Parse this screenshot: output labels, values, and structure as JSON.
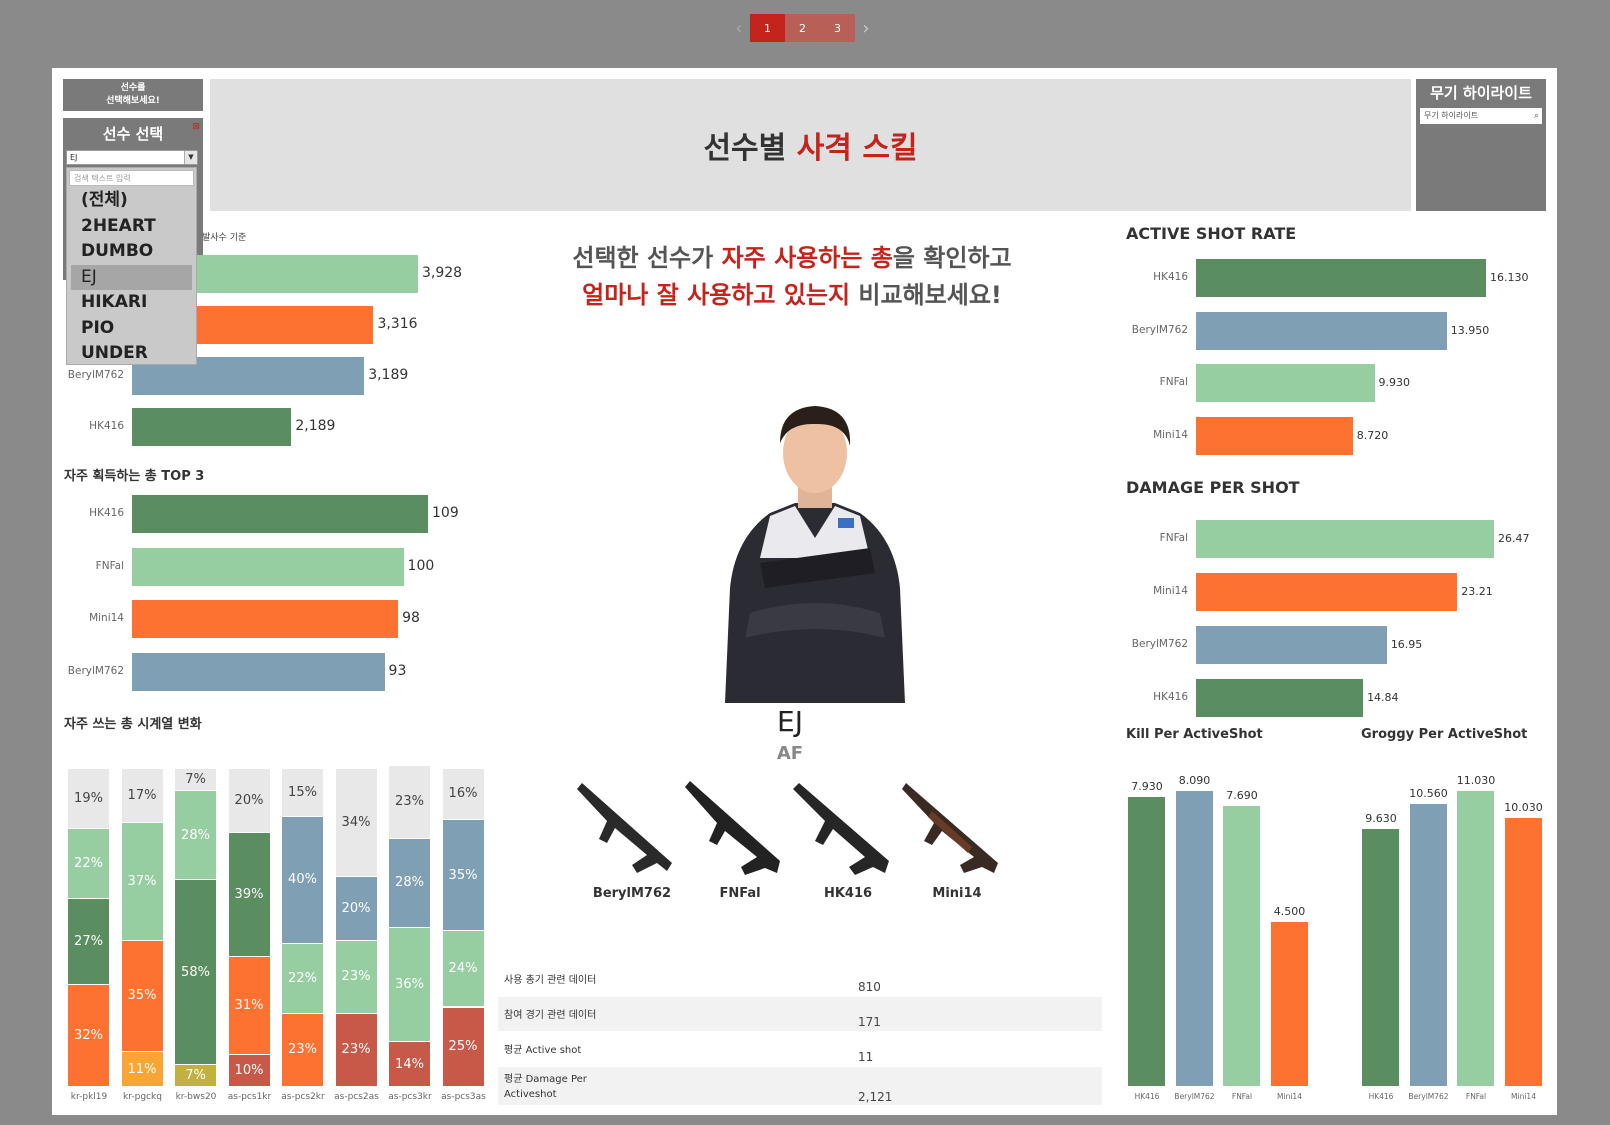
{
  "pager": {
    "pages": [
      "1",
      "2",
      "3"
    ],
    "current": "1"
  },
  "left_panel": {
    "prompt": "선수를\n선택해보세요!",
    "prompt_line1": "선수를",
    "prompt_line2": "선택해보세요!",
    "filter_title": "선수 선택",
    "selected": "EJ",
    "search_placeholder": "검색 텍스트 입력",
    "options": [
      "(전체)",
      "2HEART",
      "DUMBO",
      "EJ",
      "HIKARI",
      "PIO",
      "UNDER"
    ]
  },
  "header": {
    "title_a": "선수별 ",
    "title_b": "사격 스킬"
  },
  "highlight": {
    "title": "무기 하이라이트",
    "placeholder": "무기 하이라이트"
  },
  "center": {
    "line1_a": "선택한 선수가 ",
    "line1_b": "자주 사용하는 총",
    "line1_c": "을 확인하고",
    "line2_a": "얼마나 잘 사용하고 있는지",
    "line2_b": " 비교해보세요!"
  },
  "player": {
    "name": "EJ",
    "team": "AF"
  },
  "guns": [
    "BerylM762",
    "FNFal",
    "HK416",
    "Mini14"
  ],
  "stats": [
    {
      "label": "사용 총기 관련 데이터",
      "value": "810"
    },
    {
      "label": "참여 경기 관련 데이터",
      "value": "171"
    },
    {
      "label": "평균 Active shot",
      "value": "11"
    },
    {
      "label": "평균 Damage Per Activeshot",
      "value": "2,121"
    }
  ],
  "colors": {
    "dark_green": "#5a8d5f",
    "light_green": "#97cea1",
    "orange": "#fd7131",
    "blue": "#7e9fb4",
    "red": "#c4241c",
    "gray": "#e8e8e8",
    "yellow": "#f9a533",
    "olive": "#c2b040",
    "brick": "#c85848"
  },
  "chart_data": [
    {
      "type": "bar",
      "title": "발사수 기준",
      "categories": [
        "",
        "",
        "BerylM762",
        "HK416"
      ],
      "values": [
        3928,
        3316,
        3189,
        2189
      ],
      "labels": [
        "3,928",
        "3,316",
        "3,189",
        "2,189"
      ]
    },
    {
      "type": "bar",
      "title": "자주 획득하는 총 TOP 3",
      "categories": [
        "HK416",
        "FNFal",
        "Mini14",
        "BerylM762"
      ],
      "values": [
        109,
        100,
        98,
        93
      ]
    },
    {
      "type": "bar",
      "title": "ACTIVE SHOT RATE",
      "categories": [
        "HK416",
        "BerylM762",
        "FNFal",
        "Mini14"
      ],
      "values": [
        16.13,
        13.95,
        9.93,
        8.72
      ],
      "labels": [
        "16.130",
        "13.950",
        "9.930",
        "8.720"
      ]
    },
    {
      "type": "bar",
      "title": "DAMAGE PER SHOT",
      "categories": [
        "FNFal",
        "Mini14",
        "BerylM762",
        "HK416"
      ],
      "values": [
        26.47,
        23.21,
        16.95,
        14.84
      ],
      "labels": [
        "26.47",
        "23.21",
        "16.95",
        "14.84"
      ]
    },
    {
      "type": "bar",
      "title": "Kill Per ActiveShot",
      "categories": [
        "HK416",
        "BerylM762",
        "FNFal",
        "Mini14"
      ],
      "values": [
        7.93,
        8.09,
        7.69,
        4.5
      ],
      "labels": [
        "7.930",
        "8.090",
        "7.690",
        "4.500"
      ]
    },
    {
      "type": "bar",
      "title": "Groggy Per ActiveShot",
      "categories": [
        "HK416",
        "BerylM762",
        "FNFal",
        "Mini14"
      ],
      "values": [
        9.63,
        10.56,
        11.03,
        10.03
      ],
      "labels": [
        "9.630",
        "10.560",
        "11.030",
        "10.030"
      ]
    },
    {
      "type": "bar",
      "title": "자주 쓰는 총 시계열 변화",
      "categories": [
        "kr-pkl19",
        "kr-pgckq",
        "kr-bws20",
        "as-pcs1kr",
        "as-pcs2kr",
        "as-pcs2as",
        "as-pcs3kr",
        "as-pcs3as"
      ],
      "stacks": [
        [
          {
            "v": 32,
            "c": "orange"
          },
          {
            "v": 27,
            "c": "dark_green"
          },
          {
            "v": 22,
            "c": "light_green"
          },
          {
            "v": 19,
            "c": "gray"
          }
        ],
        [
          {
            "v": 11,
            "c": "yellow"
          },
          {
            "v": 35,
            "c": "orange"
          },
          {
            "v": 37,
            "c": "light_green"
          },
          {
            "v": 17,
            "c": "gray"
          }
        ],
        [
          {
            "v": 7,
            "c": "olive"
          },
          {
            "v": 58,
            "c": "dark_green"
          },
          {
            "v": 28,
            "c": "light_green"
          },
          {
            "v": 7,
            "c": "gray"
          }
        ],
        [
          {
            "v": 10,
            "c": "brick"
          },
          {
            "v": 31,
            "c": "orange"
          },
          {
            "v": 39,
            "c": "dark_green"
          },
          {
            "v": 20,
            "c": "gray"
          }
        ],
        [
          {
            "v": 23,
            "c": "orange"
          },
          {
            "v": 22,
            "c": "light_green"
          },
          {
            "v": 40,
            "c": "blue"
          },
          {
            "v": 15,
            "c": "gray"
          }
        ],
        [
          {
            "v": 23,
            "c": "brick"
          },
          {
            "v": 23,
            "c": "light_green"
          },
          {
            "v": 20,
            "c": "blue"
          },
          {
            "v": 34,
            "c": "gray"
          }
        ],
        [
          {
            "v": 14,
            "c": "brick"
          },
          {
            "v": 36,
            "c": "light_green"
          },
          {
            "v": 28,
            "c": "blue"
          },
          {
            "v": 23,
            "c": "gray"
          }
        ],
        [
          {
            "v": 25,
            "c": "brick"
          },
          {
            "v": 24,
            "c": "light_green"
          },
          {
            "v": 35,
            "c": "blue"
          },
          {
            "v": 16,
            "c": "gray"
          }
        ]
      ]
    }
  ]
}
